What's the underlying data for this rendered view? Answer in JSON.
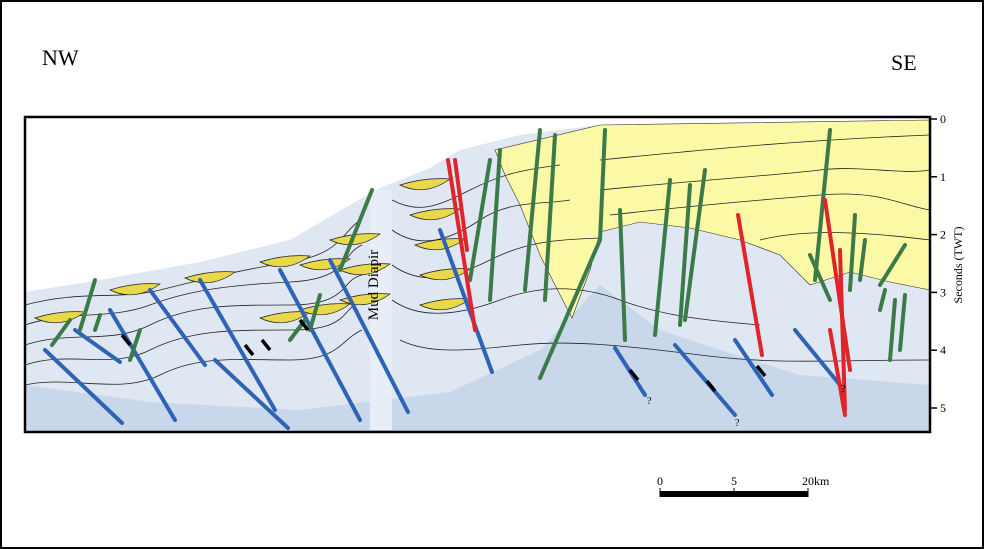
{
  "labels": {
    "left": "NW",
    "right": "SE",
    "diapir": "Mud Diapir"
  },
  "axis": {
    "title": "Seconds (TWT)",
    "ticks": [
      0,
      1,
      2,
      3,
      4,
      5
    ]
  },
  "scale_bar": {
    "labels": [
      "0",
      "5",
      "20km"
    ]
  },
  "annotations": [
    "?",
    "?",
    "?"
  ]
}
